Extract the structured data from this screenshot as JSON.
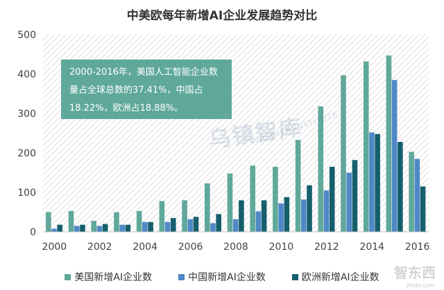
{
  "chart_data": {
    "type": "bar",
    "title": "中美欧每年新增AI企业发展趋势对比",
    "categories": [
      "2000",
      "2001",
      "2002",
      "2003",
      "2004",
      "2005",
      "2006",
      "2007",
      "2008",
      "2009",
      "2010",
      "2011",
      "2012",
      "2013",
      "2014",
      "2015",
      "2016"
    ],
    "x_tick_labels": [
      "2000",
      "2002",
      "2004",
      "2006",
      "2008",
      "2010",
      "2012",
      "2014",
      "2016"
    ],
    "ylim": [
      0,
      500
    ],
    "yticks": [
      0,
      100,
      200,
      300,
      400,
      500
    ],
    "grid": false,
    "series": [
      {
        "name": "美国新增AI企业数",
        "color": "#5fa89a",
        "values": [
          50,
          53,
          28,
          50,
          53,
          78,
          80,
          123,
          148,
          168,
          165,
          233,
          318,
          397,
          432,
          447,
          203
        ]
      },
      {
        "name": "中国新增AI企业数",
        "color": "#4f88c6",
        "values": [
          8,
          15,
          15,
          18,
          25,
          25,
          32,
          22,
          32,
          52,
          72,
          82,
          105,
          150,
          252,
          385,
          185
        ]
      },
      {
        "name": "欧洲新增AI企业数",
        "color": "#155f6d",
        "values": [
          18,
          18,
          20,
          18,
          25,
          35,
          38,
          45,
          80,
          80,
          88,
          118,
          165,
          182,
          248,
          228,
          115
        ]
      }
    ],
    "annotation": "2000-2016年，美国人工智能企业数量占全球总数的37.41%，中国占18.22%，欧洲占18.88%。",
    "legend_position": "bottom"
  },
  "watermark": {
    "text": "乌镇智库",
    "subtext": "WUZHEN INSTITUTE"
  },
  "corner_mark": {
    "text": "智东西",
    "subtext": "zhidx.com"
  }
}
